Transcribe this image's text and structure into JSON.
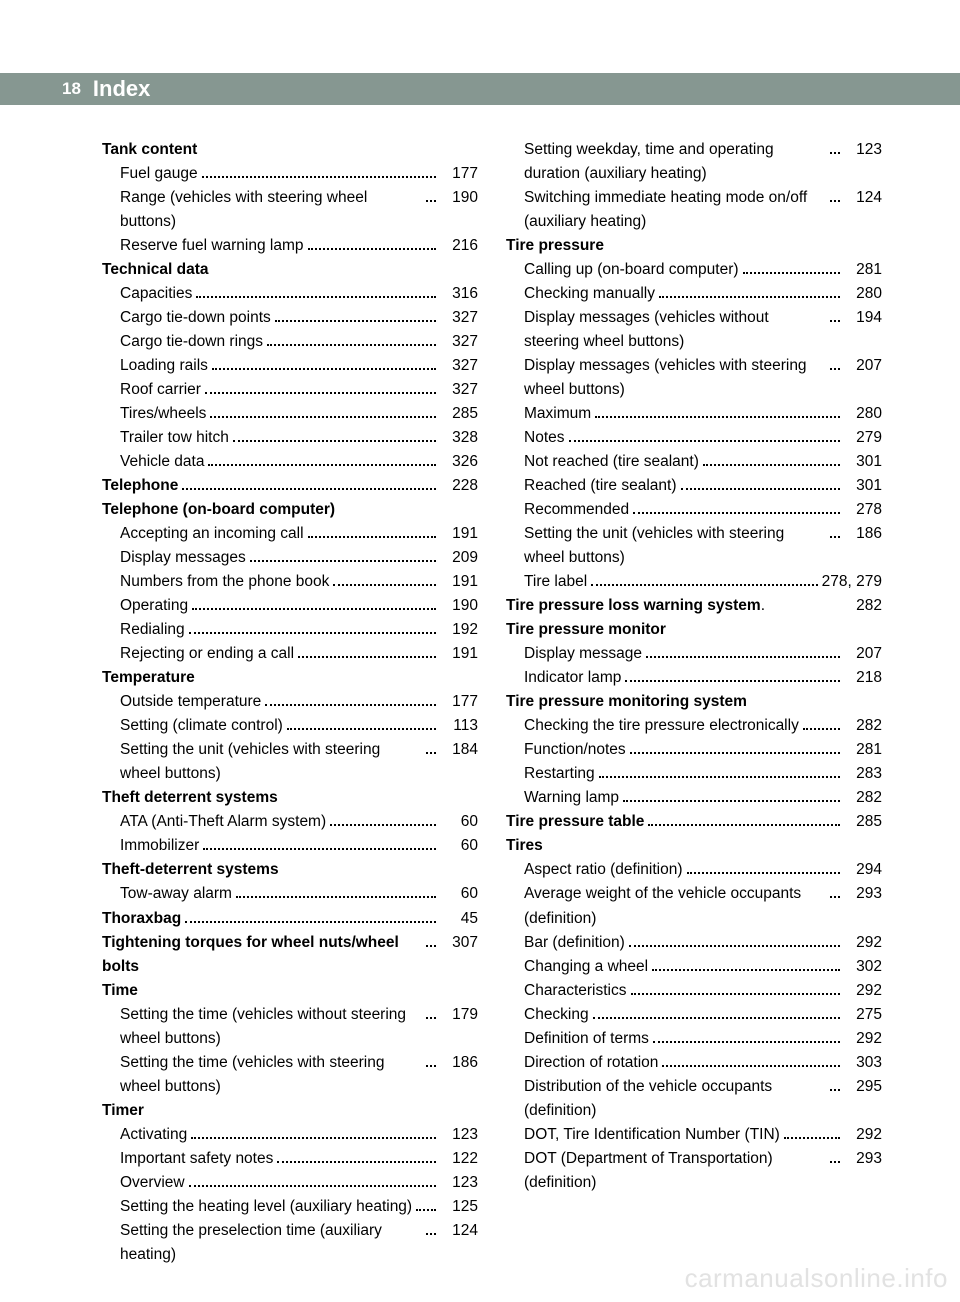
{
  "header": {
    "page_number": "18",
    "title": "Index"
  },
  "watermark": "carmanualsonline.info",
  "columns": [
    [
      {
        "label": "Tank content",
        "bold": true,
        "indent": 0
      },
      {
        "label": "Fuel gauge",
        "page": "177",
        "indent": 1
      },
      {
        "label": "Range (vehicles with steering wheel buttons)",
        "page": "190",
        "indent": 1
      },
      {
        "label": "Reserve fuel warning lamp",
        "page": "216",
        "indent": 1
      },
      {
        "label": "Technical data",
        "bold": true,
        "indent": 0
      },
      {
        "label": "Capacities",
        "page": "316",
        "indent": 1
      },
      {
        "label": "Cargo tie-down points",
        "page": "327",
        "indent": 1
      },
      {
        "label": "Cargo tie-down rings",
        "page": "327",
        "indent": 1
      },
      {
        "label": "Loading rails",
        "page": "327",
        "indent": 1
      },
      {
        "label": "Roof carrier",
        "page": "327",
        "indent": 1
      },
      {
        "label": "Tires/wheels",
        "page": "285",
        "indent": 1
      },
      {
        "label": "Trailer tow hitch",
        "page": "328",
        "indent": 1
      },
      {
        "label": "Vehicle data",
        "page": "326",
        "indent": 1
      },
      {
        "label": "Telephone",
        "bold": true,
        "page": "228",
        "indent": 0
      },
      {
        "label": "Telephone (on-board computer)",
        "bold": true,
        "indent": 0
      },
      {
        "label": "Accepting an incoming call",
        "page": "191",
        "indent": 1
      },
      {
        "label": "Display messages",
        "page": "209",
        "indent": 1
      },
      {
        "label": "Numbers from the phone book",
        "page": "191",
        "indent": 1
      },
      {
        "label": "Operating",
        "page": "190",
        "indent": 1
      },
      {
        "label": "Redialing",
        "page": "192",
        "indent": 1
      },
      {
        "label": "Rejecting or ending a call",
        "page": "191",
        "indent": 1
      },
      {
        "label": "Temperature",
        "bold": true,
        "indent": 0
      },
      {
        "label": "Outside temperature",
        "page": "177",
        "indent": 1
      },
      {
        "label": "Setting (climate control)",
        "page": "113",
        "indent": 1
      },
      {
        "label": "Setting the unit (vehicles with steering wheel buttons)",
        "page": "184",
        "indent": 1
      },
      {
        "label": "Theft deterrent systems",
        "bold": true,
        "indent": 0
      },
      {
        "label": "ATA (Anti-Theft Alarm system)",
        "page": "60",
        "indent": 1
      },
      {
        "label": "Immobilizer",
        "page": "60",
        "indent": 1
      },
      {
        "label": "Theft-deterrent systems",
        "bold": true,
        "indent": 0
      },
      {
        "label": "Tow-away alarm",
        "page": "60",
        "indent": 1
      },
      {
        "label": "Thoraxbag",
        "bold": true,
        "page": "45",
        "indent": 0
      },
      {
        "label": "Tightening torques for wheel nuts/wheel bolts",
        "bold": true,
        "page": "307",
        "indent": 0
      },
      {
        "label": "Time",
        "bold": true,
        "indent": 0
      },
      {
        "label": "Setting the time (vehicles without steering wheel buttons)",
        "page": "179",
        "indent": 1
      },
      {
        "label": "Setting the time (vehicles with steering wheel buttons)",
        "page": "186",
        "indent": 1
      },
      {
        "label": "Timer",
        "bold": true,
        "indent": 0
      },
      {
        "label": "Activating",
        "page": "123",
        "indent": 1
      },
      {
        "label": "Important safety notes",
        "page": "122",
        "indent": 1
      },
      {
        "label": "Overview",
        "page": "123",
        "indent": 1
      },
      {
        "label": "Setting the heating level (auxiliary heating)",
        "page": "125",
        "indent": 1
      },
      {
        "label": "Setting the preselection time (auxiliary heating)",
        "page": "124",
        "indent": 1
      }
    ],
    [
      {
        "label": "Setting weekday, time and operating duration (auxiliary heating)",
        "page": "123",
        "indent": 1
      },
      {
        "label": "Switching immediate heating mode on/off (auxiliary heating)",
        "page": "124",
        "indent": 1
      },
      {
        "label": "Tire pressure",
        "bold": true,
        "indent": 0
      },
      {
        "label": "Calling up (on-board computer)",
        "page": "281",
        "indent": 1
      },
      {
        "label": "Checking manually",
        "page": "280",
        "indent": 1
      },
      {
        "label": "Display messages (vehicles without steering wheel buttons)",
        "page": "194",
        "indent": 1
      },
      {
        "label": "Display messages (vehicles with steering wheel buttons)",
        "page": "207",
        "indent": 1
      },
      {
        "label": "Maximum",
        "page": "280",
        "indent": 1
      },
      {
        "label": "Notes",
        "page": "279",
        "indent": 1
      },
      {
        "label": "Not reached (tire sealant)",
        "page": "301",
        "indent": 1
      },
      {
        "label": "Reached (tire sealant)",
        "page": "301",
        "indent": 1
      },
      {
        "label": "Recommended",
        "page": "278",
        "indent": 1
      },
      {
        "label": "Setting the unit (vehicles with steering wheel buttons)",
        "page": "186",
        "indent": 1
      },
      {
        "label": "Tire label",
        "page": "278, 279",
        "indent": 1
      },
      {
        "label": "Tire pressure loss warning system",
        "bold": true,
        "page": "282",
        "indent": 0,
        "nodots": true
      },
      {
        "label": "Tire pressure monitor",
        "bold": true,
        "indent": 0
      },
      {
        "label": "Display message",
        "page": "207",
        "indent": 1
      },
      {
        "label": "Indicator lamp",
        "page": "218",
        "indent": 1
      },
      {
        "label": "Tire pressure monitoring system",
        "bold": true,
        "indent": 0
      },
      {
        "label": "Checking the tire pressure electronically",
        "page": "282",
        "indent": 1
      },
      {
        "label": "Function/notes",
        "page": "281",
        "indent": 1
      },
      {
        "label": "Restarting",
        "page": "283",
        "indent": 1
      },
      {
        "label": "Warning lamp",
        "page": "282",
        "indent": 1
      },
      {
        "label": "Tire pressure table",
        "bold": true,
        "page": "285",
        "indent": 0
      },
      {
        "label": "Tires",
        "bold": true,
        "indent": 0
      },
      {
        "label": "Aspect ratio (definition)",
        "page": "294",
        "indent": 1
      },
      {
        "label": "Average weight of the vehicle occupants (definition)",
        "page": "293",
        "indent": 1
      },
      {
        "label": "Bar (definition)",
        "page": "292",
        "indent": 1
      },
      {
        "label": "Changing a wheel",
        "page": "302",
        "indent": 1
      },
      {
        "label": "Characteristics",
        "page": "292",
        "indent": 1
      },
      {
        "label": "Checking",
        "page": "275",
        "indent": 1
      },
      {
        "label": "Definition of terms",
        "page": "292",
        "indent": 1
      },
      {
        "label": "Direction of rotation",
        "page": "303",
        "indent": 1
      },
      {
        "label": "Distribution of the vehicle occupants (definition)",
        "page": "295",
        "indent": 1
      },
      {
        "label": "DOT, Tire Identification Number (TIN)",
        "page": "292",
        "indent": 1
      },
      {
        "label": "DOT (Department of Transportation) (definition)",
        "page": "293",
        "indent": 1
      }
    ]
  ]
}
